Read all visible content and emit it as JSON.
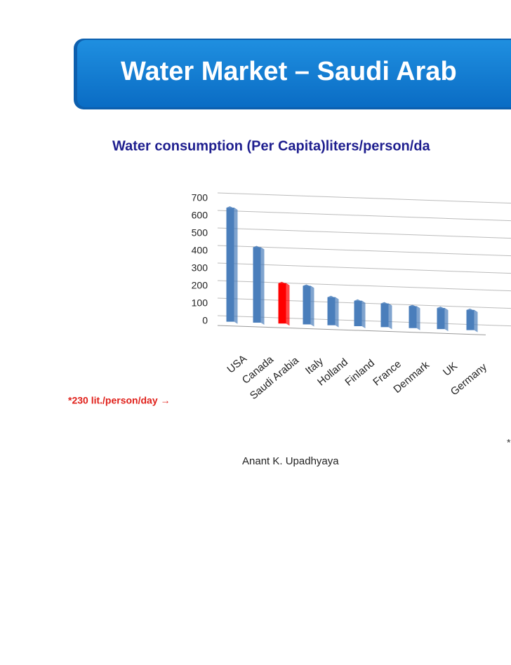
{
  "title": "Water Market – Saudi Arab",
  "chart_data": {
    "type": "bar3d",
    "title": "Water consumption (Per Capita)liters/person/da",
    "categories": [
      "USA",
      "Canada",
      "Saudi Arabia",
      "Italy",
      "Holland",
      "Finland",
      "France",
      "Denmark",
      "UK",
      "Germany"
    ],
    "values": [
      650,
      430,
      230,
      220,
      160,
      145,
      135,
      125,
      120,
      115
    ],
    "colors": [
      "#4a7ebb",
      "#4a7ebb",
      "#ff0000",
      "#4a7ebb",
      "#4a7ebb",
      "#4a7ebb",
      "#4a7ebb",
      "#4a7ebb",
      "#4a7ebb",
      "#4a7ebb"
    ],
    "ylim": [
      0,
      700
    ],
    "yticks": [
      0,
      100,
      200,
      300,
      400,
      500,
      600,
      700
    ],
    "grid": true,
    "annotation": "*230 lit./person/day →"
  },
  "footnote_mark": "*",
  "author": "Anant K. Upadhyaya"
}
